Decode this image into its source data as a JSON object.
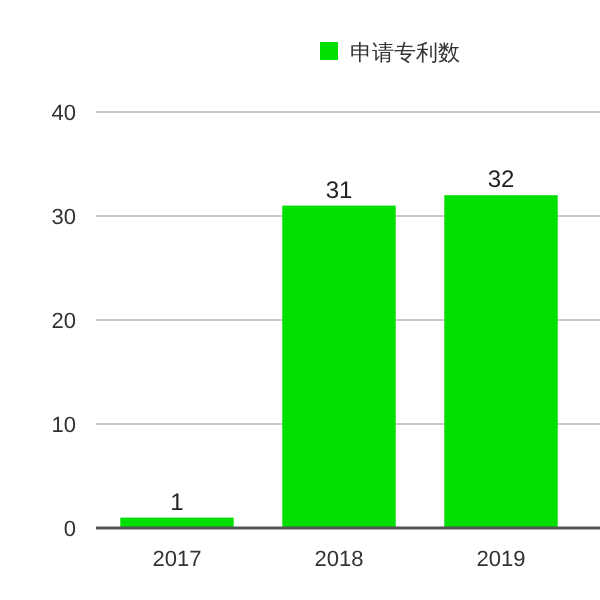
{
  "chart_data": {
    "type": "bar",
    "categories": [
      "2017",
      "2018",
      "2019"
    ],
    "series": [
      {
        "name": "申请专利数",
        "color": "#00e000",
        "values": [
          1,
          31,
          32
        ]
      }
    ],
    "ylim": [
      0,
      40
    ],
    "yticks": [
      0,
      10,
      20,
      30,
      40
    ],
    "grid": "y",
    "legend": "top",
    "data_labels": true
  }
}
